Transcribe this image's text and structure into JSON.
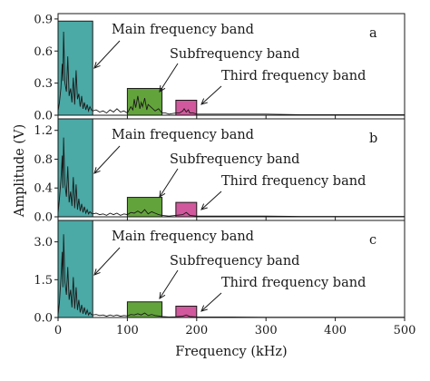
{
  "chart_data": {
    "type": "area",
    "xlabel": "Frequency (kHz)",
    "ylabel": "Amplitude (V)",
    "xlim": [
      0,
      500
    ],
    "xticks": [
      "0",
      "100",
      "200",
      "300",
      "400",
      "500"
    ],
    "band_colors": {
      "main": "#4ba9a6",
      "sub": "#63a33c",
      "third": "#d1589c"
    },
    "panels": [
      {
        "letter": "a",
        "ylim": [
          0,
          0.95
        ],
        "yticks": [
          0,
          0.3,
          0.6,
          0.9
        ],
        "yticklabels": [
          "0.0",
          "0.3",
          "0.6",
          "0.9"
        ],
        "bands": [
          {
            "key": "main",
            "label": "Main frequency band",
            "x0": 0,
            "x1": 50,
            "height": 0.88
          },
          {
            "key": "sub",
            "label": "Subfrequency band",
            "x0": 100,
            "x1": 150,
            "height": 0.25
          },
          {
            "key": "third",
            "label": "Third frequency band",
            "x0": 170,
            "x1": 200,
            "height": 0.14
          }
        ],
        "spectrum": {
          "x": [
            0,
            2,
            4,
            6,
            7,
            8,
            10,
            12,
            14,
            16,
            18,
            20,
            22,
            24,
            26,
            28,
            30,
            32,
            34,
            36,
            38,
            40,
            42,
            44,
            46,
            48,
            50,
            55,
            60,
            65,
            70,
            75,
            80,
            85,
            90,
            95,
            100,
            105,
            108,
            110,
            112,
            115,
            118,
            120,
            122,
            125,
            128,
            130,
            135,
            140,
            145,
            150,
            155,
            160,
            170,
            175,
            180,
            182,
            185,
            188,
            190,
            195,
            200,
            210,
            220,
            250,
            300,
            350,
            400,
            450,
            500
          ],
          "y": [
            0.04,
            0.12,
            0.25,
            0.48,
            0.32,
            0.78,
            0.3,
            0.22,
            0.55,
            0.18,
            0.25,
            0.12,
            0.35,
            0.1,
            0.42,
            0.15,
            0.2,
            0.08,
            0.18,
            0.06,
            0.12,
            0.05,
            0.1,
            0.04,
            0.08,
            0.05,
            0.04,
            0.05,
            0.03,
            0.04,
            0.02,
            0.05,
            0.03,
            0.06,
            0.03,
            0.04,
            0.02,
            0.08,
            0.05,
            0.15,
            0.07,
            0.18,
            0.06,
            0.12,
            0.08,
            0.16,
            0.05,
            0.1,
            0.07,
            0.04,
            0.06,
            0.02,
            0.02,
            0.01,
            0.02,
            0.02,
            0.04,
            0.06,
            0.03,
            0.05,
            0.02,
            0.02,
            0.01,
            0.01,
            0.01,
            0.01,
            0.01,
            0.005,
            0.005,
            0.005,
            0.005
          ]
        }
      },
      {
        "letter": "b",
        "ylim": [
          0,
          1.36
        ],
        "yticks": [
          0,
          0.4,
          0.8,
          1.2
        ],
        "yticklabels": [
          "0.0",
          "0.4",
          "0.8",
          "1.2"
        ],
        "bands": [
          {
            "key": "main",
            "label": "Main frequency band",
            "x0": 0,
            "x1": 50,
            "height": 1.36
          },
          {
            "key": "sub",
            "label": "Subfrequency band",
            "x0": 100,
            "x1": 150,
            "height": 0.27
          },
          {
            "key": "third",
            "label": "Third frequency band",
            "x0": 170,
            "x1": 200,
            "height": 0.2
          }
        ],
        "spectrum": {
          "x": [
            0,
            2,
            4,
            6,
            7,
            8,
            10,
            12,
            14,
            16,
            18,
            20,
            22,
            24,
            26,
            28,
            30,
            32,
            34,
            36,
            38,
            40,
            42,
            44,
            46,
            48,
            50,
            55,
            60,
            65,
            70,
            75,
            80,
            85,
            90,
            95,
            100,
            105,
            110,
            115,
            120,
            125,
            130,
            135,
            140,
            145,
            150,
            160,
            170,
            180,
            185,
            190,
            200,
            250,
            300,
            350,
            400,
            450,
            500
          ],
          "y": [
            0.05,
            0.25,
            0.5,
            0.85,
            0.4,
            1.1,
            0.45,
            0.28,
            0.7,
            0.2,
            0.35,
            0.15,
            0.55,
            0.12,
            0.45,
            0.1,
            0.25,
            0.08,
            0.18,
            0.06,
            0.14,
            0.05,
            0.1,
            0.04,
            0.07,
            0.05,
            0.04,
            0.05,
            0.03,
            0.04,
            0.02,
            0.05,
            0.03,
            0.05,
            0.02,
            0.04,
            0.03,
            0.06,
            0.05,
            0.08,
            0.05,
            0.1,
            0.04,
            0.07,
            0.05,
            0.03,
            0.02,
            0.01,
            0.02,
            0.03,
            0.06,
            0.02,
            0.01,
            0.01,
            0.01,
            0.005,
            0.005,
            0.005,
            0.005
          ]
        }
      },
      {
        "letter": "c",
        "ylim": [
          0,
          3.85
        ],
        "yticks": [
          0,
          1.5,
          3.0
        ],
        "yticklabels": [
          "0.0",
          "1.5",
          "3.0"
        ],
        "bands": [
          {
            "key": "main",
            "label": "Main frequency band",
            "x0": 0,
            "x1": 50,
            "height": 3.85
          },
          {
            "key": "sub",
            "label": "Subfrequency band",
            "x0": 100,
            "x1": 150,
            "height": 0.62
          },
          {
            "key": "third",
            "label": "Third frequency band",
            "x0": 170,
            "x1": 200,
            "height": 0.45
          }
        ],
        "spectrum": {
          "x": [
            0,
            2,
            4,
            6,
            7,
            8,
            10,
            12,
            14,
            16,
            18,
            20,
            22,
            24,
            26,
            28,
            30,
            32,
            34,
            36,
            38,
            40,
            42,
            44,
            46,
            48,
            50,
            55,
            60,
            65,
            70,
            75,
            80,
            85,
            90,
            95,
            100,
            105,
            110,
            115,
            120,
            125,
            130,
            135,
            140,
            145,
            150,
            160,
            170,
            180,
            185,
            190,
            200,
            250,
            300,
            350,
            400,
            450,
            500
          ],
          "y": [
            0.1,
            0.6,
            1.5,
            2.6,
            1.2,
            3.3,
            1.4,
            0.9,
            2.0,
            0.7,
            1.1,
            0.4,
            1.6,
            0.35,
            1.2,
            0.3,
            0.7,
            0.2,
            0.5,
            0.15,
            0.4,
            0.12,
            0.3,
            0.1,
            0.2,
            0.12,
            0.1,
            0.12,
            0.08,
            0.1,
            0.05,
            0.1,
            0.06,
            0.1,
            0.05,
            0.08,
            0.06,
            0.12,
            0.1,
            0.15,
            0.1,
            0.18,
            0.08,
            0.12,
            0.08,
            0.06,
            0.04,
            0.02,
            0.03,
            0.05,
            0.1,
            0.04,
            0.02,
            0.02,
            0.01,
            0.01,
            0.01,
            0.01,
            0.01
          ]
        }
      }
    ]
  }
}
